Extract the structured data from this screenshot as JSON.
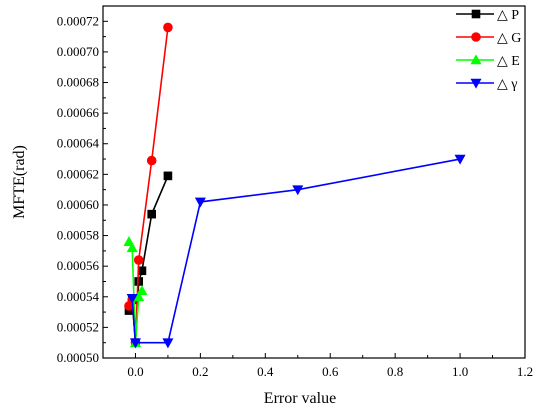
{
  "chart_data": {
    "type": "line",
    "title": "",
    "xlabel": "Error value",
    "ylabel": "MFTE(rad)",
    "xlim": [
      -0.1,
      1.2
    ],
    "ylim": [
      0.0005,
      0.00073
    ],
    "xticks": [
      0.0,
      0.2,
      0.4,
      0.6,
      0.8,
      1.0,
      1.2
    ],
    "xtick_labels": [
      "0.0",
      "0.2",
      "0.4",
      "0.6",
      "0.8",
      "1.0",
      "1.2"
    ],
    "yticks": [
      0.0005,
      0.00052,
      0.00054,
      0.00056,
      0.00058,
      0.0006,
      0.00062,
      0.00064,
      0.00066,
      0.00068,
      0.0007,
      0.00072
    ],
    "ytick_labels": [
      "0.00050",
      "0.00052",
      "0.00054",
      "0.00056",
      "0.00058",
      "0.00060",
      "0.00062",
      "0.00064",
      "0.00066",
      "0.00068",
      "0.00070",
      "0.00072"
    ],
    "grid": false,
    "legend_position": "top-right",
    "series": [
      {
        "name": "△ P",
        "color": "#000000",
        "marker": "square",
        "x": [
          -0.02,
          -0.01,
          0.0,
          0.01,
          0.02,
          0.05,
          0.1
        ],
        "y": [
          0.000531,
          0.000538,
          0.00051,
          0.00055,
          0.000557,
          0.000594,
          0.000619
        ]
      },
      {
        "name": "△ G",
        "color": "#ff0000",
        "marker": "circle",
        "x": [
          -0.02,
          -0.01,
          0.0,
          0.01,
          0.05,
          0.1
        ],
        "y": [
          0.000534,
          0.000538,
          0.00051,
          0.000564,
          0.000629,
          0.000716
        ]
      },
      {
        "name": "△ E",
        "color": "#00ff00",
        "marker": "triangle-up",
        "x": [
          -0.02,
          -0.01,
          0.0,
          0.01,
          0.02
        ],
        "y": [
          0.000576,
          0.000572,
          0.00051,
          0.00054,
          0.000544
        ]
      },
      {
        "name": "△ γ",
        "color": "#0000ff",
        "marker": "triangle-down",
        "x": [
          -0.01,
          0.0,
          0.1,
          0.2,
          0.5,
          1.0
        ],
        "y": [
          0.000539,
          0.00051,
          0.00051,
          0.000602,
          0.00061,
          0.00063
        ]
      }
    ]
  }
}
